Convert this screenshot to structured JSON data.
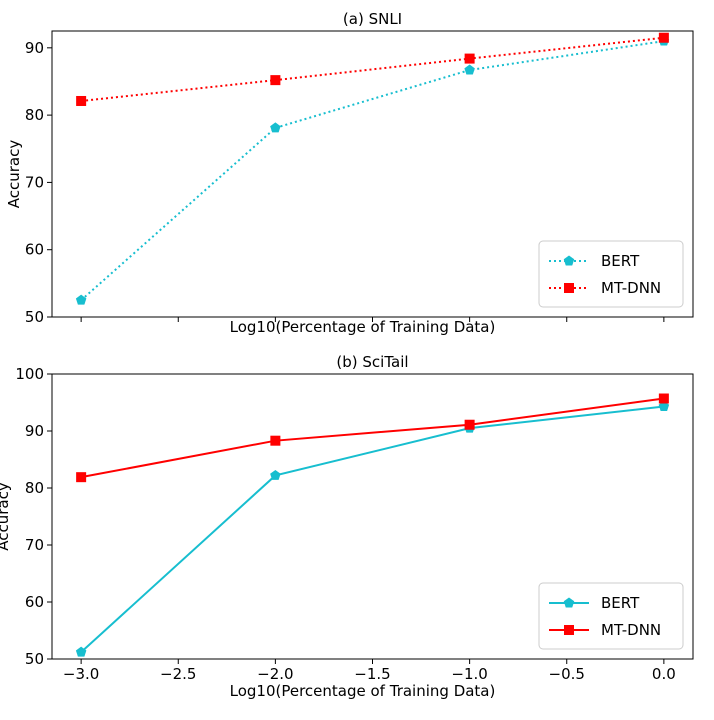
{
  "chart_data": [
    {
      "type": "line",
      "title": "(a) SNLI",
      "xlabel": "Log10(Percentage of Training Data)",
      "ylabel": "Accuracy",
      "x": [
        -3.0,
        -2.0,
        -1.0,
        0.0
      ],
      "xlim": [
        -3.15,
        0.15
      ],
      "ylim": [
        50,
        92.5
      ],
      "yticks": [
        50,
        60,
        70,
        80,
        90
      ],
      "xticks": [],
      "show_x_tick_labels": false,
      "line_style": "dotted",
      "legend_position": "lower-right",
      "series": [
        {
          "name": "BERT",
          "values": [
            52.5,
            78.1,
            86.7,
            91.0
          ],
          "color": "#17becf",
          "marker": "pentagon"
        },
        {
          "name": "MT-DNN",
          "values": [
            82.1,
            85.2,
            88.4,
            91.5
          ],
          "color": "#ff0000",
          "marker": "square"
        }
      ]
    },
    {
      "type": "line",
      "title": "(b) SciTail",
      "xlabel": "Log10(Percentage of Training Data)",
      "ylabel": "Accuracy",
      "x": [
        -3.0,
        -2.0,
        -1.0,
        0.0
      ],
      "xlim": [
        -3.15,
        0.15
      ],
      "ylim": [
        50,
        100
      ],
      "yticks": [
        50,
        60,
        70,
        80,
        90,
        100
      ],
      "xticks": [
        -3.0,
        -2.5,
        -2.0,
        -1.5,
        -1.0,
        -0.5,
        0.0
      ],
      "xtick_labels": [
        "−3.0",
        "−2.5",
        "−2.0",
        "−1.5",
        "−1.0",
        "−0.5",
        "0.0"
      ],
      "show_x_tick_labels": true,
      "line_style": "solid",
      "legend_position": "lower-right",
      "series": [
        {
          "name": "BERT",
          "values": [
            51.2,
            82.2,
            90.5,
            94.3
          ],
          "color": "#17becf",
          "marker": "pentagon"
        },
        {
          "name": "MT-DNN",
          "values": [
            81.9,
            88.3,
            91.1,
            95.7
          ],
          "color": "#ff0000",
          "marker": "square"
        }
      ]
    }
  ]
}
